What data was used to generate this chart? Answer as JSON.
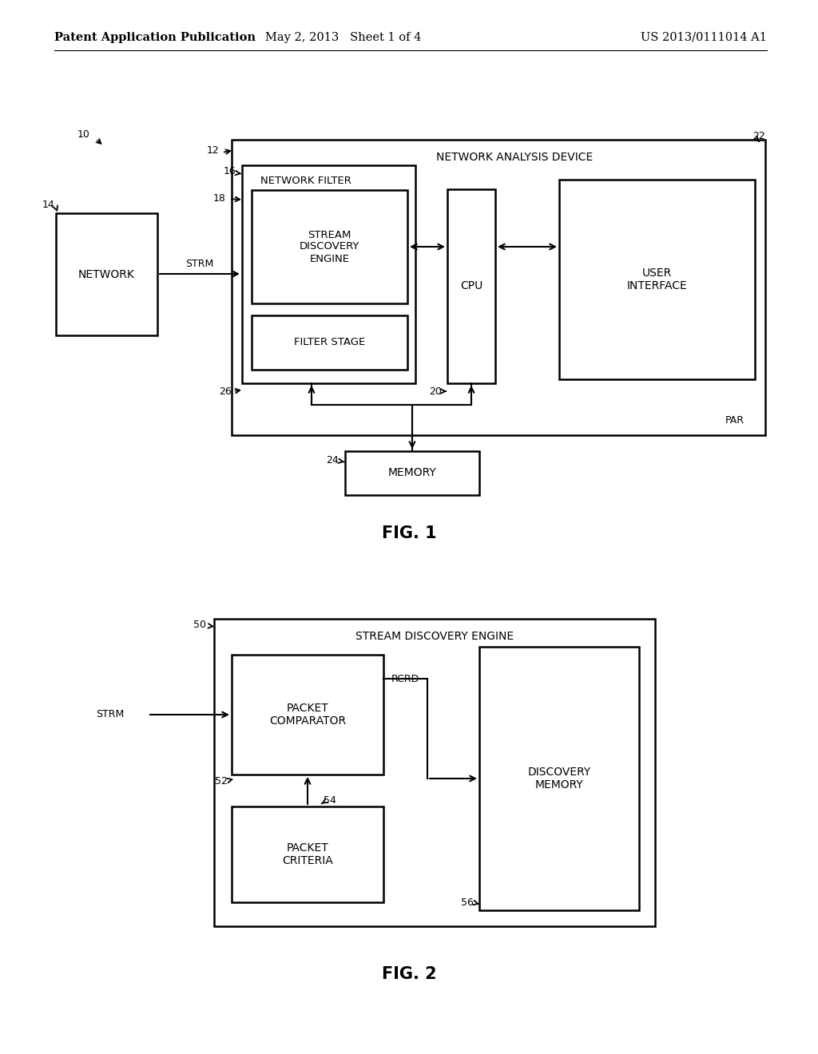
{
  "bg_color": "#ffffff",
  "header": {
    "left": "Patent Application Publication",
    "center": "May 2, 2013   Sheet 1 of 4",
    "right": "US 2013/0111014 A1"
  },
  "fig1_title": "FIG. 1",
  "fig2_title": "FIG. 2"
}
